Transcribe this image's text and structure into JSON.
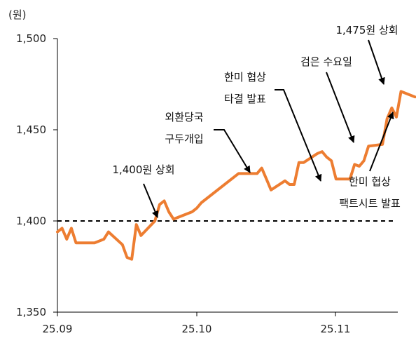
{
  "chart_data": {
    "type": "line",
    "unit_label": "(원)",
    "x_ticks": [
      "25.09",
      "25.10",
      "25.11"
    ],
    "y_ticks": [
      "1,350",
      "1,400",
      "1,450",
      "1,500"
    ],
    "ylim": [
      1350,
      1500
    ],
    "reference_line": {
      "value": 1400,
      "style": "dashed"
    },
    "grid": false,
    "colors": {
      "series": "#ED7D31",
      "axis": "#000000",
      "reference": "#000000"
    },
    "series": [
      {
        "x": [
          "2025-09-01",
          "2025-09-02",
          "2025-09-03",
          "2025-09-04",
          "2025-09-05",
          "2025-09-08",
          "2025-09-09",
          "2025-09-10",
          "2025-09-11",
          "2025-09-12",
          "2025-09-15",
          "2025-09-16",
          "2025-09-17",
          "2025-09-18",
          "2025-09-19",
          "2025-09-22",
          "2025-09-23",
          "2025-09-24",
          "2025-09-25",
          "2025-09-26",
          "2025-09-29",
          "2025-09-30",
          "2025-10-01",
          "2025-10-02",
          "2025-10-10",
          "2025-10-13",
          "2025-10-14",
          "2025-10-15",
          "2025-10-16",
          "2025-10-17",
          "2025-10-20",
          "2025-10-21",
          "2025-10-22",
          "2025-10-23",
          "2025-10-24",
          "2025-10-27",
          "2025-10-28",
          "2025-10-29",
          "2025-10-30",
          "2025-10-31",
          "2025-11-03",
          "2025-11-04",
          "2025-11-05",
          "2025-11-06",
          "2025-11-07",
          "2025-11-10",
          "2025-11-11",
          "2025-11-12",
          "2025-11-13",
          "2025-11-14",
          "2025-11-17"
        ],
        "values": [
          1394,
          1396,
          1390,
          1396,
          1388,
          1388,
          1388,
          1389,
          1390,
          1394,
          1387,
          1380,
          1379,
          1398,
          1392,
          1400,
          1409,
          1411,
          1405,
          1401,
          1404,
          1405,
          1407,
          1410,
          1426,
          1426,
          1426,
          1429,
          1423,
          1417,
          1422,
          1420,
          1420,
          1432,
          1432,
          1437,
          1438,
          1435,
          1433,
          1423,
          1423,
          1431,
          1430,
          1433,
          1441,
          1442,
          1456,
          1462,
          1457,
          1471,
          1468
        ]
      }
    ],
    "annotations": [
      {
        "lines": [
          "1,400원 상회"
        ]
      },
      {
        "lines": [
          "외환당국",
          "구두개입"
        ]
      },
      {
        "lines": [
          "한미 협상",
          "타결 발표"
        ]
      },
      {
        "lines": [
          "검은 수요일"
        ]
      },
      {
        "lines": [
          "1,475원 상회"
        ]
      },
      {
        "lines": [
          "한미 협상",
          "팩트시트 발표"
        ]
      }
    ]
  }
}
